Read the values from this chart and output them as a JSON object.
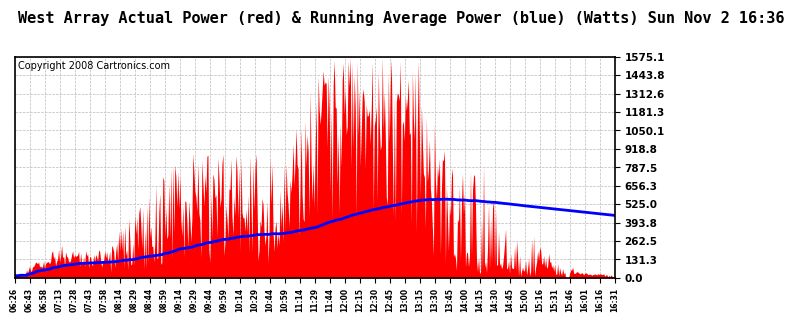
{
  "title": "West Array Actual Power (red) & Running Average Power (blue) (Watts) Sun Nov 2 16:36",
  "copyright": "Copyright 2008 Cartronics.com",
  "y_ticks": [
    0.0,
    131.3,
    262.5,
    393.8,
    525.0,
    656.3,
    787.5,
    918.8,
    1050.1,
    1181.3,
    1312.6,
    1443.8,
    1575.1
  ],
  "y_max": 1575.1,
  "x_labels": [
    "06:26",
    "06:43",
    "06:58",
    "07:13",
    "07:28",
    "07:43",
    "07:58",
    "08:14",
    "08:29",
    "08:44",
    "08:59",
    "09:14",
    "09:29",
    "09:44",
    "09:59",
    "10:14",
    "10:29",
    "10:44",
    "10:59",
    "11:14",
    "11:29",
    "11:44",
    "12:00",
    "12:15",
    "12:30",
    "12:45",
    "13:00",
    "13:15",
    "13:30",
    "13:45",
    "14:00",
    "14:15",
    "14:30",
    "14:45",
    "15:00",
    "15:16",
    "15:31",
    "15:46",
    "16:01",
    "16:16",
    "16:31"
  ],
  "background_color": "#ffffff",
  "grid_color": "#bbbbbb",
  "fill_color": "#ff0000",
  "line_color": "#0000ff",
  "title_fontsize": 11,
  "copyright_fontsize": 7
}
